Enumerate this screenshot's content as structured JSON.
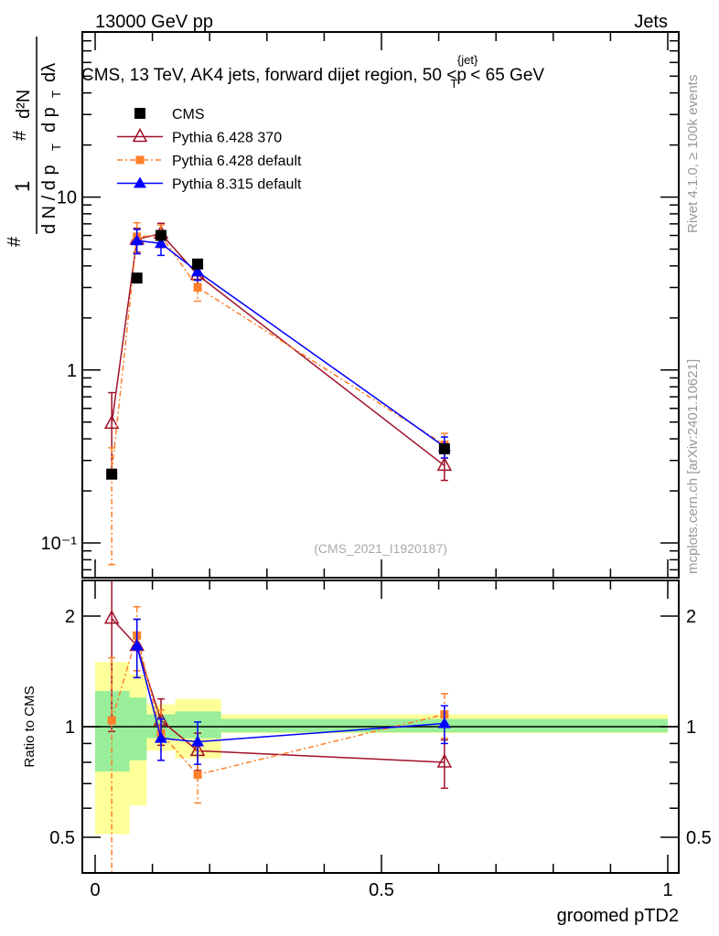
{
  "header": {
    "left": "13000 GeV pp",
    "right": "Jets"
  },
  "side": {
    "rivet": "Rivet 4.1.0, ≥ 100k events",
    "mcplots": "mcplots.cern.ch [arXiv:2401.10621]"
  },
  "chart_data": [
    {
      "type": "line",
      "title_main": "CMS, 13 TeV, AK4 jets, forward dijet region, 50 <p",
      "title_sup": "{jet}",
      "title_sub": "T",
      "title_end": "< 65 GeV",
      "ylabel_left": "# 1 / (d N / d p_T # dλ)",
      "ylabel_parts": {
        "num1": "1",
        "den1": "d N / d p",
        "t": "T",
        "hash": "#",
        "d2n": "d²N",
        "den2": "d p",
        "dl": "dλ"
      },
      "watermark": "(CMS_2021_I1920187)",
      "yscale": "log",
      "ylim": [
        0.063,
        90
      ],
      "xlim": [
        -0.02,
        1.02
      ],
      "yticklabels": [
        {
          "v": 0.1,
          "t": "10⁻¹"
        },
        {
          "v": 1,
          "t": "1"
        },
        {
          "v": 10,
          "t": "10"
        }
      ],
      "legend_position": "top-left",
      "x": [
        0.029,
        0.073,
        0.115,
        0.179,
        0.61
      ],
      "series": [
        {
          "name": "CMS",
          "color": "#000000",
          "marker": "square",
          "values": [
            0.25,
            3.4,
            6.0,
            4.1,
            0.35
          ],
          "err": [
            [
              0,
              0
            ],
            [
              0,
              0
            ],
            [
              0,
              0
            ],
            [
              0,
              0
            ],
            [
              0,
              0
            ]
          ]
        },
        {
          "name": "Pythia 6.428 370",
          "color": "#a0102a",
          "marker": "open-triangle",
          "dash": "",
          "values": [
            0.49,
            5.7,
            6.15,
            3.55,
            0.28
          ],
          "err": [
            [
              0.24,
              0.25
            ],
            [
              0.9,
              0.9
            ],
            [
              0.9,
              0.9
            ],
            [
              0.4,
              0.4
            ],
            [
              0.05,
              0.05
            ]
          ]
        },
        {
          "name": "Pythia 6.428 default",
          "color": "#ff7f2a",
          "marker": "square-small",
          "dash": "6,3,2,3",
          "values": [
            0.255,
            5.9,
            6.0,
            3.0,
            0.37
          ],
          "err": [
            [
              0.18,
              0.1
            ],
            [
              1.2,
              1.2
            ],
            [
              0.9,
              0.9
            ],
            [
              0.5,
              0.5
            ],
            [
              0.06,
              0.06
            ]
          ]
        },
        {
          "name": "Pythia 8.315 default",
          "color": "#0000ff",
          "marker": "triangle",
          "dash": "",
          "values": [
            null,
            5.6,
            5.4,
            3.7,
            0.36
          ],
          "err": [
            [
              0,
              0
            ],
            [
              0.9,
              0.9
            ],
            [
              0.8,
              0.8
            ],
            [
              0.4,
              0.4
            ],
            [
              0.05,
              0.05
            ]
          ]
        }
      ]
    },
    {
      "type": "line",
      "ylabel": "Ratio to CMS",
      "xlabel": "groomed pTD2",
      "yscale": "log",
      "ylim": [
        0.4,
        2.5
      ],
      "xlim": [
        -0.02,
        1.02
      ],
      "yticklabels": [
        {
          "v": 0.5,
          "t": "0.5"
        },
        {
          "v": 1,
          "t": "1"
        },
        {
          "v": 2,
          "t": "2"
        }
      ],
      "xticklabels": [
        {
          "v": 0,
          "t": "0"
        },
        {
          "v": 0.5,
          "t": "0.5"
        },
        {
          "v": 1,
          "t": "1"
        }
      ],
      "bin_edges": [
        0,
        0.06,
        0.09,
        0.14,
        0.22,
        1.0
      ],
      "band_yellow": [
        [
          0.51,
          1.5
        ],
        [
          0.61,
          1.39
        ],
        [
          0.86,
          1.15
        ],
        [
          0.82,
          1.19
        ],
        [
          0.96,
          1.08
        ]
      ],
      "band_green": [
        [
          0.755,
          1.25
        ],
        [
          0.81,
          1.2
        ],
        [
          0.93,
          1.08
        ],
        [
          0.93,
          1.1
        ],
        [
          0.965,
          1.05
        ]
      ],
      "x": [
        0.029,
        0.073,
        0.115,
        0.179,
        0.61
      ],
      "series": [
        {
          "name": "Pythia 6.428 370",
          "values": [
            1.97,
            1.66,
            1.04,
            0.86,
            0.8
          ],
          "err": [
            [
              1.0,
              0.6
            ],
            [
              0.3,
              0.3
            ],
            [
              0.15,
              0.15
            ],
            [
              0.1,
              0.1
            ],
            [
              0.12,
              0.12
            ]
          ]
        },
        {
          "name": "Pythia 6.428 default",
          "values": [
            1.04,
            1.77,
            0.96,
            0.74,
            1.08
          ],
          "err": [
            [
              0.7,
              0.5
            ],
            [
              0.35,
              0.35
            ],
            [
              0.15,
              0.15
            ],
            [
              0.12,
              0.12
            ],
            [
              0.15,
              0.15
            ]
          ]
        },
        {
          "name": "Pythia 8.315 default",
          "values": [
            null,
            1.66,
            0.93,
            0.91,
            1.02
          ],
          "err": [
            [
              0,
              0
            ],
            [
              0.3,
              0.3
            ],
            [
              0.12,
              0.12
            ],
            [
              0.12,
              0.12
            ],
            [
              0.12,
              0.12
            ]
          ]
        }
      ]
    }
  ]
}
